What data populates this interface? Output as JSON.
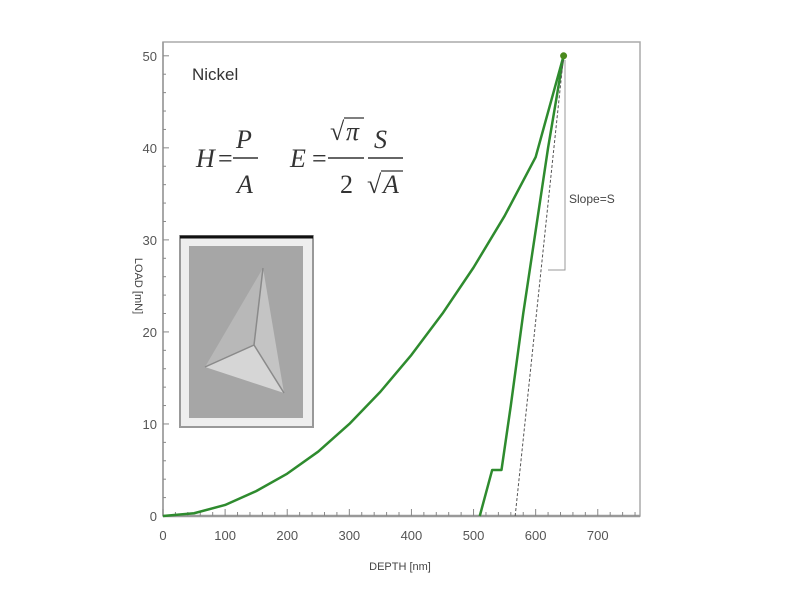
{
  "chart_data": {
    "type": "line",
    "title": "",
    "annotation_material": "Nickel",
    "formula_hardness": {
      "lhs": "H",
      "num": "P",
      "den": "A"
    },
    "formula_modulus": {
      "lhs": "E",
      "num1": "π",
      "den1": "2",
      "num2": "S",
      "den2": "A"
    },
    "slope_label": "Slope=S",
    "xlabel": "DEPTH [nm]",
    "ylabel": "LOAD [mN]",
    "xlim": [
      0,
      768
    ],
    "ylim": [
      0,
      51.5
    ],
    "xticks": [
      0,
      100,
      200,
      300,
      400,
      500,
      600,
      700
    ],
    "yticks": [
      0,
      10,
      20,
      30,
      40,
      50
    ],
    "grid": false,
    "series": [
      {
        "role": "loading",
        "color": "#2e8b2e",
        "x": [
          0,
          50,
          100,
          150,
          200,
          250,
          300,
          350,
          400,
          450,
          500,
          550,
          600,
          645
        ],
        "y": [
          0,
          0.3,
          1.2,
          2.7,
          4.6,
          7.0,
          10.0,
          13.5,
          17.5,
          22.0,
          27.0,
          32.6,
          39.0,
          50
        ]
      },
      {
        "role": "unloading",
        "color": "#2e8b2e",
        "x": [
          510,
          530,
          545,
          560,
          580,
          600,
          620,
          645
        ],
        "y": [
          0,
          5,
          5,
          12,
          22,
          31,
          40,
          50
        ]
      },
      {
        "role": "tangent",
        "color": "#555555",
        "style": "dashed",
        "x": [
          567,
          645
        ],
        "y": [
          0,
          50
        ]
      }
    ],
    "inset": "indent-micrograph"
  }
}
